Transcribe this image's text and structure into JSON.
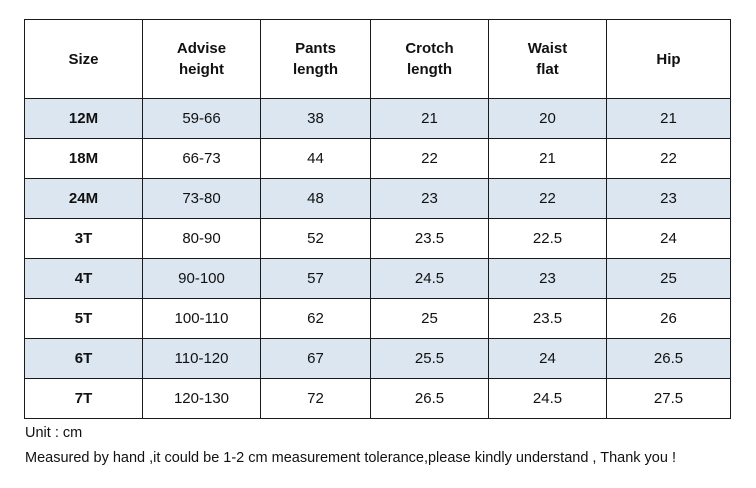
{
  "table": {
    "headers": [
      {
        "line1": "Size",
        "line2": ""
      },
      {
        "line1": "Advise",
        "line2": "height"
      },
      {
        "line1": "Pants",
        "line2": "length"
      },
      {
        "line1": "Crotch",
        "line2": "length"
      },
      {
        "line1": "Waist",
        "line2": "flat"
      },
      {
        "line1": "Hip",
        "line2": ""
      }
    ],
    "rows": [
      {
        "size": "12M",
        "height": "59-66",
        "pants": "38",
        "crotch": "21",
        "waist": "20",
        "hip": "21",
        "shaded": true
      },
      {
        "size": "18M",
        "height": "66-73",
        "pants": "44",
        "crotch": "22",
        "waist": "21",
        "hip": "22",
        "shaded": false
      },
      {
        "size": "24M",
        "height": "73-80",
        "pants": "48",
        "crotch": "23",
        "waist": "22",
        "hip": "23",
        "shaded": true
      },
      {
        "size": "3T",
        "height": "80-90",
        "pants": "52",
        "crotch": "23.5",
        "waist": "22.5",
        "hip": "24",
        "shaded": false
      },
      {
        "size": "4T",
        "height": "90-100",
        "pants": "57",
        "crotch": "24.5",
        "waist": "23",
        "hip": "25",
        "shaded": true
      },
      {
        "size": "5T",
        "height": "100-110",
        "pants": "62",
        "crotch": "25",
        "waist": "23.5",
        "hip": "26",
        "shaded": false
      },
      {
        "size": "6T",
        "height": "110-120",
        "pants": "67",
        "crotch": "25.5",
        "waist": "24",
        "hip": "26.5",
        "shaded": true
      },
      {
        "size": "7T",
        "height": "120-130",
        "pants": "72",
        "crotch": "26.5",
        "waist": "24.5",
        "hip": "27.5",
        "shaded": false
      }
    ]
  },
  "notes": {
    "unit": "Unit : cm",
    "measurement": "Measured by hand ,it could be 1-2 cm measurement tolerance,please kindly understand , Thank you !"
  },
  "colors": {
    "shaded_row": "#dce6f1",
    "border": "#1a1a1a"
  }
}
